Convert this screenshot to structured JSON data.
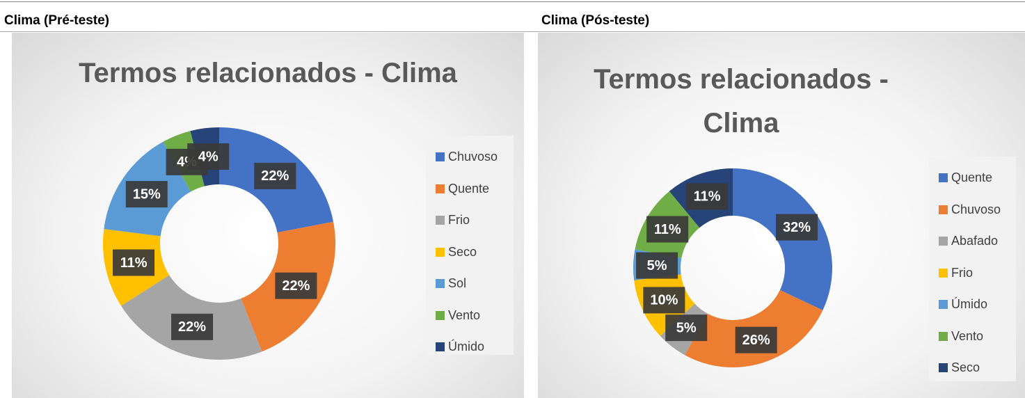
{
  "headings": [
    "Clima (Pré-teste)",
    "Clima (Pós-teste)"
  ],
  "chart_data": [
    {
      "type": "donut",
      "title": "Termos relacionados - Clima",
      "categories": [
        "Chuvoso",
        "Quente",
        "Frio",
        "Seco",
        "Sol",
        "Vento",
        "Úmido"
      ],
      "values": [
        22,
        22,
        22,
        11,
        15,
        4,
        4
      ],
      "value_labels": [
        "22%",
        "22%",
        "22%",
        "11%",
        "15%",
        "4%",
        "4%"
      ],
      "colors": [
        "#4472c4",
        "#ed7d31",
        "#a5a5a5",
        "#ffc000",
        "#5b9bd5",
        "#70ad47",
        "#264478"
      ],
      "legend": "right"
    },
    {
      "type": "donut",
      "title": "Termos relacionados - Clima",
      "categories": [
        "Quente",
        "Chuvoso",
        "Abafado",
        "Frio",
        "Úmido",
        "Vento",
        "Seco"
      ],
      "values": [
        32,
        26,
        5,
        10,
        5,
        11,
        11
      ],
      "value_labels": [
        "32%",
        "26%",
        "5%",
        "10%",
        "5%",
        "11%",
        "11%"
      ],
      "colors": [
        "#4472c4",
        "#ed7d31",
        "#a5a5a5",
        "#ffc000",
        "#5b9bd5",
        "#70ad47",
        "#264478"
      ],
      "legend": "right"
    }
  ]
}
